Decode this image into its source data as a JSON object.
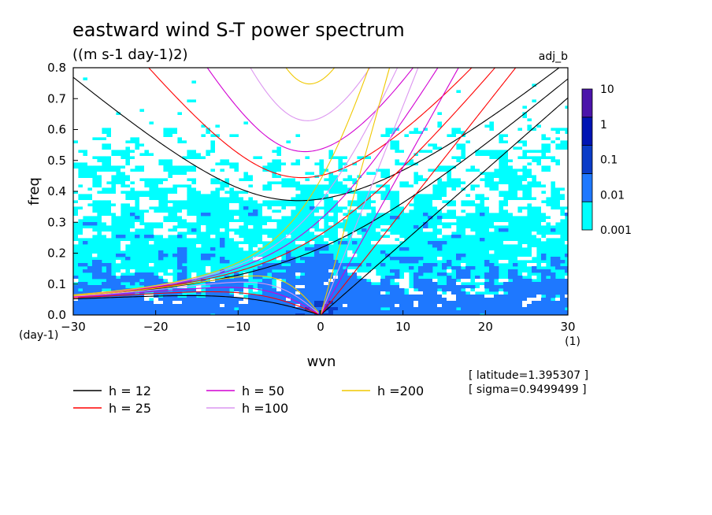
{
  "chart_data": {
    "type": "heatmap",
    "title": "eastward wind S-T power spectrum",
    "subtitle": "((m s-1 day-1)2)",
    "run_label": "adj_b",
    "xlabel": "wvn",
    "ylabel": "freq",
    "x_unit": "(1)",
    "y_unit": "(day-1)",
    "xlim": [
      -30,
      30
    ],
    "ylim": [
      0,
      0.8
    ],
    "x_ticks": [
      -30,
      -20,
      -10,
      0,
      10,
      20,
      30
    ],
    "y_ticks": [
      0.0,
      0.1,
      0.2,
      0.3,
      0.4,
      0.5,
      0.6,
      0.7,
      0.8
    ],
    "x_tick_labels": [
      "-30",
      "-20",
      "-10",
      "0",
      "10",
      "20",
      "30"
    ],
    "y_tick_labels": [
      "0.0",
      "0.1",
      "0.2",
      "0.3",
      "0.4",
      "0.5",
      "0.6",
      "0.7",
      "0.8"
    ],
    "colorbar": {
      "levels": [
        "0.001",
        "0.01",
        "0.1",
        "1",
        "10"
      ],
      "colors": [
        "#00ffff",
        "#1e78ff",
        "#0a3cc8",
        "#0014b4",
        "#4b14aa"
      ]
    },
    "dispersion_curves": [
      {
        "name": "h = 12",
        "h": 12,
        "color": "#000000"
      },
      {
        "name": "h = 25",
        "h": 25,
        "color": "#ff0000"
      },
      {
        "name": "h = 50",
        "h": 50,
        "color": "#d200d2"
      },
      {
        "name": "h =100",
        "h": 100,
        "color": "#dc96f0"
      },
      {
        "name": "h =200",
        "h": 200,
        "color": "#f0c800"
      }
    ],
    "annotations": {
      "latitude": "[ latitude=1.395307 ]",
      "sigma": "[ sigma=0.9499499 ]"
    },
    "field_levels_description": "background power mostly between 0.001 and 0.01 with patches below 0.001 (white), stronger 0.01-0.1 power at low frequency near wavenumber 0"
  }
}
